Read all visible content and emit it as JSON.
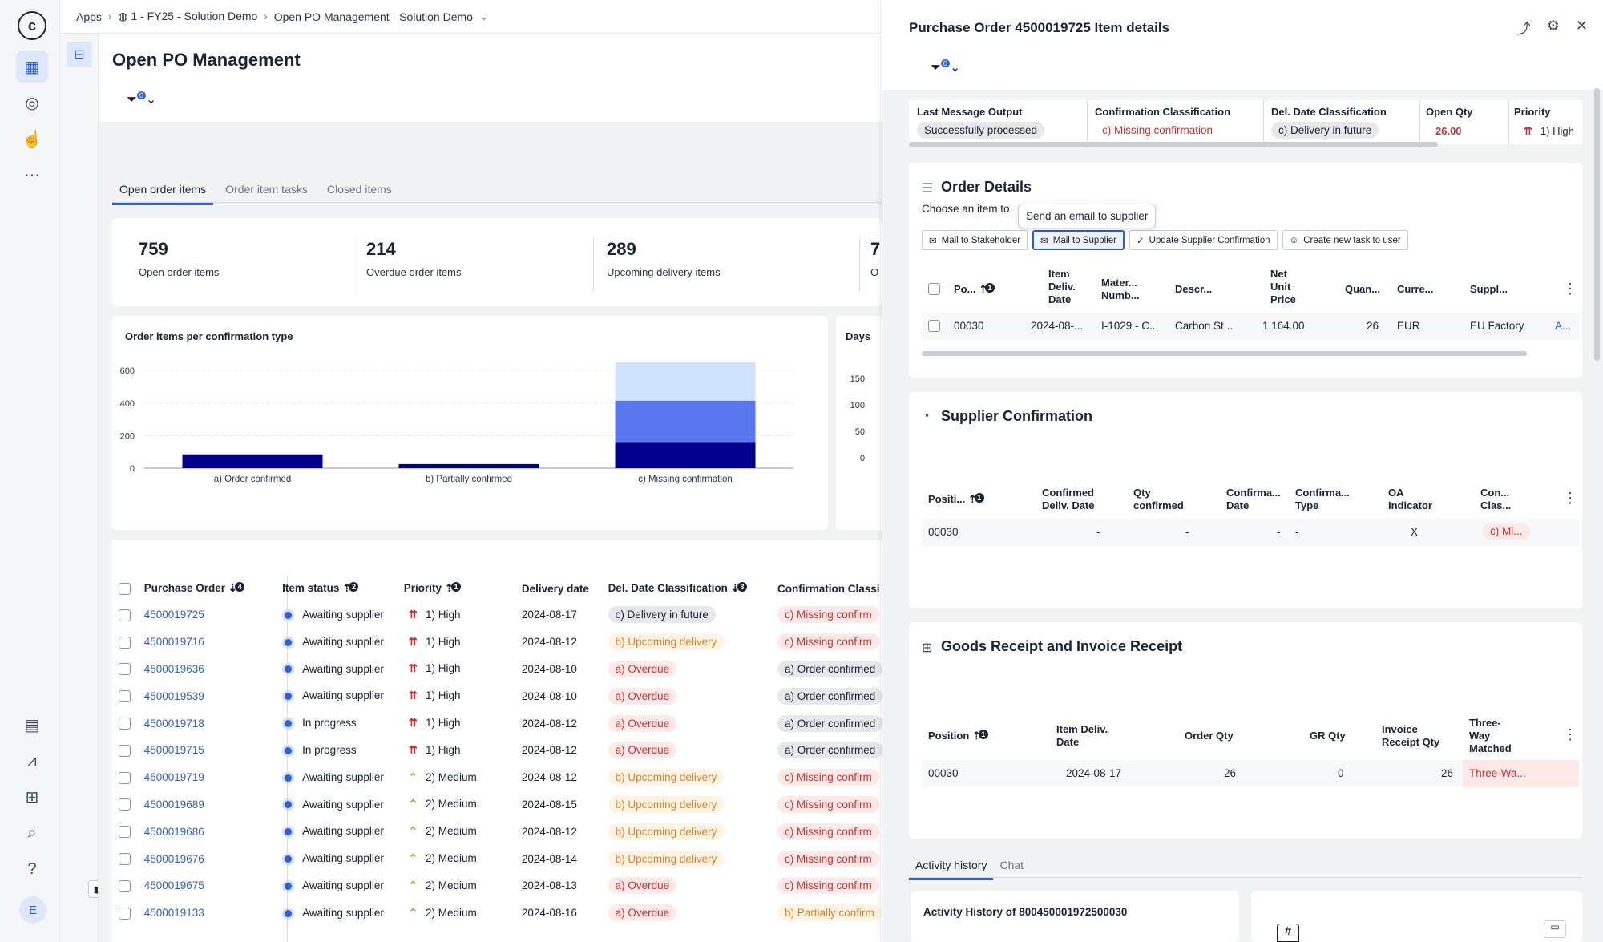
{
  "breadcrumb": {
    "apps": "Apps",
    "workspace": "1 - FY25 - Solution Demo",
    "view": "Open PO Management - Solution Demo"
  },
  "page": {
    "title": "Open PO Management",
    "filter_count": "0"
  },
  "tabs": [
    "Open order items",
    "Order item tasks",
    "Closed items"
  ],
  "kpis": [
    {
      "value": "759",
      "label": "Open order items"
    },
    {
      "value": "214",
      "label": "Overdue order items"
    },
    {
      "value": "289",
      "label": "Upcoming delivery items"
    },
    {
      "value": "7",
      "label": "O"
    }
  ],
  "chart": {
    "title": "Order items per confirmation type",
    "second_title": "Days"
  },
  "chart_data": [
    {
      "type": "bar",
      "title": "Order items per confirmation type",
      "categories": [
        "a) Order confirmed",
        "b) Partially confirmed",
        "c) Missing confirmation"
      ],
      "series": [
        {
          "values": [
            85,
            25,
            160
          ]
        },
        {
          "values": [
            0,
            0,
            255
          ]
        },
        {
          "values": [
            0,
            0,
            235
          ]
        }
      ],
      "ylim": [
        0,
        650
      ],
      "yticks": [
        0,
        200,
        400,
        600
      ],
      "stacked": true,
      "colors": [
        "#00008b",
        "#5b78f0",
        "#cfe2fb"
      ],
      "grid": true
    },
    {
      "type": "bar",
      "title": "Days",
      "yticks": [
        0,
        50,
        100,
        150
      ]
    }
  ],
  "table": {
    "headers": [
      "Purchase Order",
      "Item status",
      "Priority",
      "Delivery date",
      "Del. Date Classification",
      "Confirmation Classi"
    ],
    "sort_badges": [
      "4",
      "2",
      "1",
      "3"
    ],
    "rows": [
      [
        "4500019725",
        "Awaiting supplier",
        "1) High",
        "2024-08-17",
        "c) Delivery in future",
        "c) Missing confirm"
      ],
      [
        "4500019716",
        "Awaiting supplier",
        "1) High",
        "2024-08-12",
        "b) Upcoming delivery",
        "c) Missing confirm"
      ],
      [
        "4500019636",
        "Awaiting supplier",
        "1) High",
        "2024-08-10",
        "a) Overdue",
        "a) Order confirmed"
      ],
      [
        "4500019539",
        "Awaiting supplier",
        "1) High",
        "2024-08-10",
        "a) Overdue",
        "a) Order confirmed"
      ],
      [
        "4500019718",
        "In progress",
        "1) High",
        "2024-08-12",
        "a) Overdue",
        "a) Order confirmed"
      ],
      [
        "4500019715",
        "In progress",
        "1) High",
        "2024-08-12",
        "a) Overdue",
        "a) Order confirmed"
      ],
      [
        "4500019719",
        "Awaiting supplier",
        "2) Medium",
        "2024-08-12",
        "b) Upcoming delivery",
        "c) Missing confirm"
      ],
      [
        "4500019689",
        "Awaiting supplier",
        "2) Medium",
        "2024-08-15",
        "b) Upcoming delivery",
        "c) Missing confirm"
      ],
      [
        "4500019686",
        "Awaiting supplier",
        "2) Medium",
        "2024-08-12",
        "b) Upcoming delivery",
        "c) Missing confirm"
      ],
      [
        "4500019676",
        "Awaiting supplier",
        "2) Medium",
        "2024-08-14",
        "b) Upcoming delivery",
        "c) Missing confirm"
      ],
      [
        "4500019675",
        "Awaiting supplier",
        "2) Medium",
        "2024-08-13",
        "a) Overdue",
        "c) Missing confirm"
      ],
      [
        "4500019133",
        "Awaiting supplier",
        "2) Medium",
        "2024-08-16",
        "a) Overdue",
        "b) Partially confirm"
      ]
    ]
  },
  "panel": {
    "title": "Purchase Order 4500019725 Item details",
    "filter_count": "0",
    "header_fields": [
      {
        "label": "Last Message Output",
        "value": "Successfully processed"
      },
      {
        "label": "Confirmation Classification",
        "value": "c) Missing confirmation"
      },
      {
        "label": "Del. Date Classification",
        "value": "c) Delivery in future"
      },
      {
        "label": "Open Qty",
        "value": "26.00"
      },
      {
        "label": "Priority",
        "value": "1) High"
      }
    ],
    "order_details": {
      "title": "Order Details",
      "subtitle": "Choose an item to",
      "tooltip": "Send an email to supplier",
      "buttons": [
        "Mail to Stakeholder",
        "Mail to Supplier",
        "Update Supplier Confirmation",
        "Create new task to user"
      ],
      "headers": [
        "Po...",
        "Item Deliv. Date",
        "Mater... Numb...",
        "Descr...",
        "Net Unit Price",
        "Quan...",
        "Curre...",
        "Suppl..."
      ],
      "sort_badge": "1",
      "row": [
        "00030",
        "2024-08-...",
        "I-1029 - C...",
        "Carbon St...",
        "1,164.00",
        "26",
        "EUR",
        "EU Factory",
        "A..."
      ]
    },
    "supplier_confirmation": {
      "title": "Supplier Confirmation",
      "headers": [
        "Positi...",
        "Confirmed Deliv. Date",
        "Qty confirmed",
        "Confirma... Date",
        "Confirma... Type",
        "OA Indicator",
        "Con... Clas..."
      ],
      "sort_badge": "1",
      "row": [
        "00030",
        "-",
        "-",
        "-",
        "-",
        "X",
        "c) Mi..."
      ]
    },
    "goods_receipt": {
      "title": "Goods Receipt and Invoice Receipt",
      "headers": [
        "Position",
        "Item Deliv. Date",
        "Order Qty",
        "GR Qty",
        "Invoice Receipt Qty",
        "Three-Way Matched"
      ],
      "sort_badge": "1",
      "row": [
        "00030",
        "2024-08-17",
        "26",
        "0",
        "26",
        "Three-Wa..."
      ]
    },
    "activity": {
      "tabs": [
        "Activity history",
        "Chat"
      ],
      "card_title": "Activity History of 800450001972500030"
    }
  },
  "avatar": "E",
  "colors": {
    "accent": "#2f5fd0",
    "danger": "#d2302f",
    "warning": "#d9822b"
  }
}
